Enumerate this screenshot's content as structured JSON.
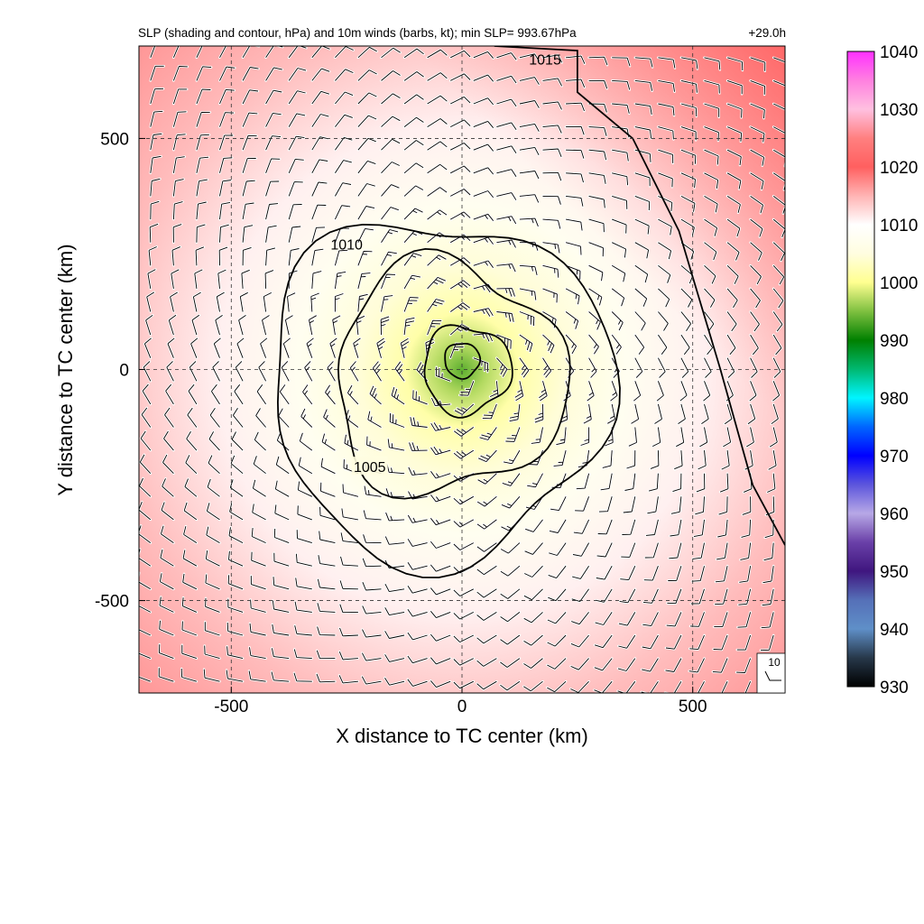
{
  "chart_data": {
    "type": "heatmap",
    "title": "SLP (shading and contour, hPa) and 10m winds (barbs, kt); min SLP= 993.67hPa",
    "forecast_hour": "+29.0h",
    "xlabel": "X distance to TC center (km)",
    "ylabel": "Y distance to TC center (km)",
    "xlim": [
      -700,
      700
    ],
    "ylim": [
      -700,
      700
    ],
    "x_ticks": [
      -500,
      0,
      500
    ],
    "y_ticks": [
      -500,
      0,
      500
    ],
    "grid": "dashed at -500, 0, 500 km",
    "colorbar": {
      "min": 930,
      "max": 1040,
      "ticks": [
        930,
        940,
        950,
        960,
        970,
        980,
        990,
        1000,
        1010,
        1020,
        1030,
        1040
      ],
      "colors": [
        [
          930,
          "#000000"
        ],
        [
          935,
          "#27384a"
        ],
        [
          940,
          "#5f8fc8"
        ],
        [
          945,
          "#5570b8"
        ],
        [
          950,
          "#3f167f"
        ],
        [
          955,
          "#6a40a8"
        ],
        [
          960,
          "#b7a8e6"
        ],
        [
          965,
          "#5c55dc"
        ],
        [
          970,
          "#0000ff"
        ],
        [
          975,
          "#0066ff"
        ],
        [
          980,
          "#00f5ff"
        ],
        [
          985,
          "#00b870"
        ],
        [
          990,
          "#008000"
        ],
        [
          995,
          "#7fc040"
        ],
        [
          1000,
          "#ffff90"
        ],
        [
          1005,
          "#fffde0"
        ],
        [
          1010,
          "#ffffff"
        ],
        [
          1015,
          "#ffb4b4"
        ],
        [
          1020,
          "#ff6060"
        ],
        [
          1025,
          "#ff8080"
        ],
        [
          1030,
          "#ffc0e0"
        ],
        [
          1035,
          "#ff80e0"
        ],
        [
          1040,
          "#ff30ff"
        ]
      ]
    },
    "contours": [
      {
        "level": 995,
        "label": ""
      },
      {
        "level": 1000,
        "label": ""
      },
      {
        "level": 1005,
        "label": "1005"
      },
      {
        "level": 1010,
        "label": "1010"
      },
      {
        "level": 1015,
        "label": "1015"
      }
    ],
    "field_description": {
      "min_slp_hpa": 993.67,
      "center_km": [
        0,
        0
      ]
    },
    "wind_barbs": {
      "units": "kt",
      "reference_label": "10",
      "spacing_km": 50
    }
  }
}
